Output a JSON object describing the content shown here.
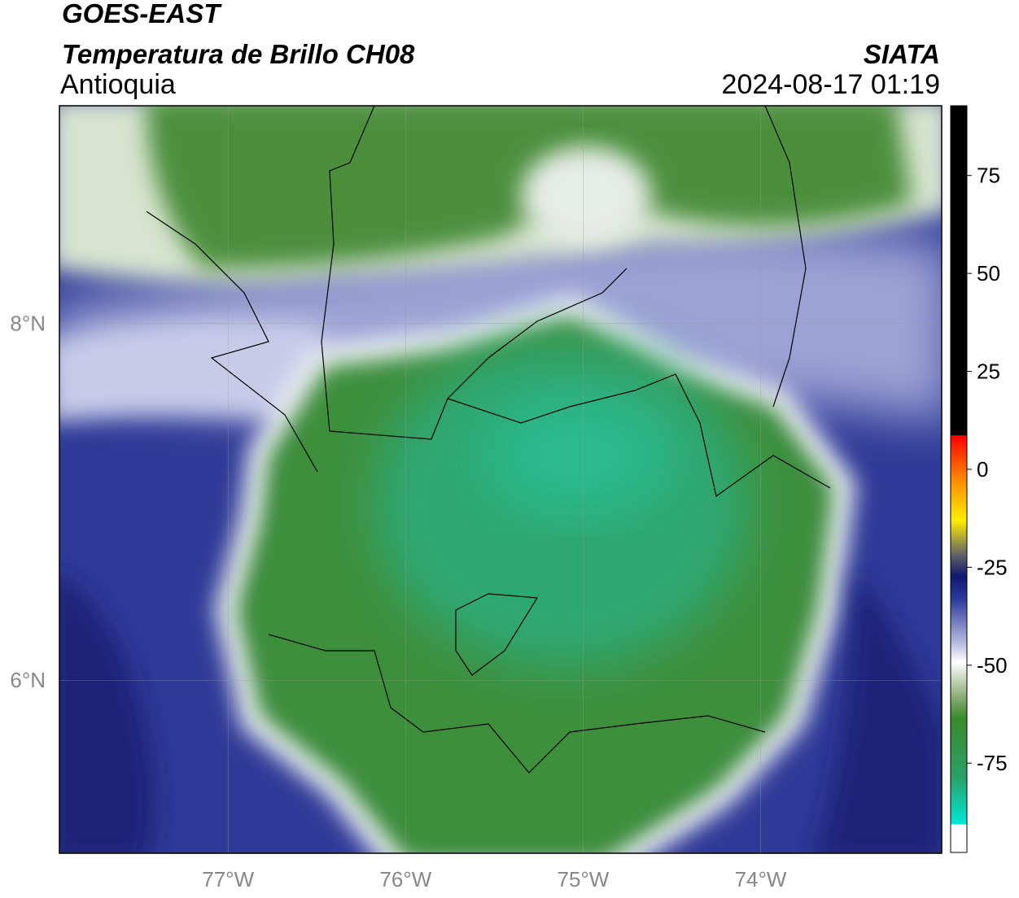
{
  "header": {
    "title": "GOES-EAST",
    "subtitle": "Temperatura de Brillo CH08",
    "region": "Antioquia",
    "source": "SIATA",
    "datetime": "2024-08-17 01:19"
  },
  "map": {
    "xlim": [
      -77.95,
      -72.98
    ],
    "ylim": [
      5.03,
      9.22
    ],
    "xticks": [
      {
        "value": -77,
        "label": "77°W"
      },
      {
        "value": -76,
        "label": "76°W"
      },
      {
        "value": -75,
        "label": "75°W"
      },
      {
        "value": -74,
        "label": "74°W"
      }
    ],
    "yticks": [
      {
        "value": 8,
        "label": "8°N"
      },
      {
        "value": 6,
        "label": "6°N"
      }
    ]
  },
  "colorbar": {
    "lim": [
      -97.8,
      92.8
    ],
    "ticks": [
      75,
      50,
      25,
      0,
      -25,
      -50,
      -75
    ]
  }
}
